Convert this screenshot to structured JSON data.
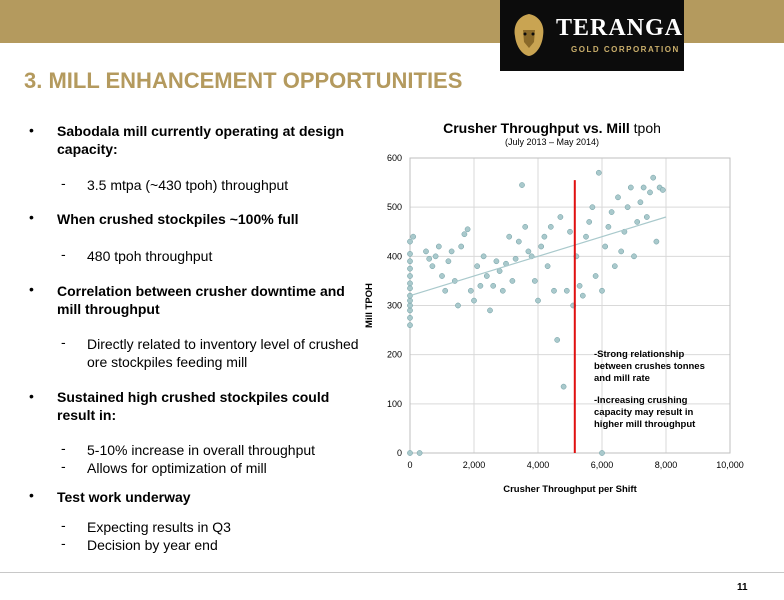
{
  "logo": {
    "name": "TERANGA",
    "sub": "GOLD CORPORATION"
  },
  "title": "3. MILL ENHANCEMENT OPPORTUNITIES",
  "bullets": {
    "b1": "Sabodala mill currently operating at design capacity:",
    "b1_sub": "3.5 mtpa (~430 tpoh) throughput",
    "b2": "When crushed stockpiles ~100% full",
    "b2_sub": "480 tpoh throughput",
    "b3": "Correlation between crusher downtime and mill throughput",
    "b3_sub": "Directly related to inventory level of crushed ore stockpiles feeding mill",
    "b4": "Sustained high crushed stockpiles could result in:",
    "b4_sub1": "5-10% increase in overall throughput",
    "b4_sub2": "Allows for optimization of mill",
    "b5": "Test work underway",
    "b5_sub1": "Expecting results in Q3",
    "b5_sub2": "Decision by year end"
  },
  "chart_title_bold": "Crusher Throughput vs. Mill",
  "chart_title_tail": " tpoh",
  "chart_subtitle": "(July 2013 – May 2014)",
  "page_number": "11",
  "chart_data": {
    "type": "scatter",
    "xlabel": "Crusher Throughput per Shift",
    "ylabel": "Mill TPOH",
    "xlim": [
      0,
      10000
    ],
    "ylim": [
      0,
      600
    ],
    "xticks": [
      "0",
      "2,000",
      "4,000",
      "6,000",
      "8,000",
      "10,000"
    ],
    "yticks": [
      "0",
      "100",
      "200",
      "300",
      "400",
      "500",
      "600"
    ],
    "point_color": "#a9c9cc",
    "point_stroke": "#6e9da2",
    "trendline": {
      "x": [
        0,
        8000
      ],
      "y": [
        320,
        480
      ],
      "color": "#a9c9cc"
    },
    "vertical_line": {
      "x": 5150,
      "color": "#e01010"
    },
    "annotations": [
      "-Strong relationship between crushes tonnes and mill rate",
      "-Increasing crushing capacity may result in higher mill throughput"
    ],
    "points": [
      [
        0,
        260
      ],
      [
        0,
        275
      ],
      [
        0,
        290
      ],
      [
        0,
        300
      ],
      [
        0,
        310
      ],
      [
        0,
        320
      ],
      [
        0,
        335
      ],
      [
        0,
        345
      ],
      [
        0,
        360
      ],
      [
        0,
        375
      ],
      [
        0,
        390
      ],
      [
        0,
        405
      ],
      [
        0,
        430
      ],
      [
        100,
        440
      ],
      [
        0,
        0
      ],
      [
        300,
        0
      ],
      [
        500,
        410
      ],
      [
        600,
        395
      ],
      [
        700,
        380
      ],
      [
        800,
        400
      ],
      [
        900,
        420
      ],
      [
        1000,
        360
      ],
      [
        1100,
        330
      ],
      [
        1200,
        390
      ],
      [
        1300,
        410
      ],
      [
        1400,
        350
      ],
      [
        1500,
        300
      ],
      [
        1600,
        420
      ],
      [
        1700,
        445
      ],
      [
        1800,
        455
      ],
      [
        1900,
        330
      ],
      [
        2000,
        310
      ],
      [
        2100,
        380
      ],
      [
        2200,
        340
      ],
      [
        2300,
        400
      ],
      [
        2400,
        360
      ],
      [
        2500,
        290
      ],
      [
        2600,
        340
      ],
      [
        2700,
        390
      ],
      [
        2800,
        370
      ],
      [
        2900,
        330
      ],
      [
        3000,
        385
      ],
      [
        3100,
        440
      ],
      [
        3200,
        350
      ],
      [
        3300,
        395
      ],
      [
        3400,
        430
      ],
      [
        3500,
        545
      ],
      [
        3600,
        460
      ],
      [
        3700,
        410
      ],
      [
        3800,
        400
      ],
      [
        3900,
        350
      ],
      [
        4000,
        310
      ],
      [
        4100,
        420
      ],
      [
        4200,
        440
      ],
      [
        4300,
        380
      ],
      [
        4400,
        460
      ],
      [
        4500,
        330
      ],
      [
        4600,
        230
      ],
      [
        4700,
        480
      ],
      [
        4800,
        135
      ],
      [
        4900,
        330
      ],
      [
        5000,
        450
      ],
      [
        5100,
        300
      ],
      [
        5200,
        400
      ],
      [
        5300,
        340
      ],
      [
        5400,
        320
      ],
      [
        5500,
        440
      ],
      [
        5600,
        470
      ],
      [
        5700,
        500
      ],
      [
        5800,
        360
      ],
      [
        5900,
        570
      ],
      [
        6000,
        0
      ],
      [
        6000,
        330
      ],
      [
        6100,
        420
      ],
      [
        6200,
        460
      ],
      [
        6300,
        490
      ],
      [
        6400,
        380
      ],
      [
        6500,
        520
      ],
      [
        6600,
        410
      ],
      [
        6700,
        450
      ],
      [
        6800,
        500
      ],
      [
        6900,
        540
      ],
      [
        7000,
        400
      ],
      [
        7100,
        470
      ],
      [
        7200,
        510
      ],
      [
        7300,
        540
      ],
      [
        7400,
        480
      ],
      [
        7500,
        530
      ],
      [
        7600,
        560
      ],
      [
        7700,
        430
      ],
      [
        7800,
        540
      ],
      [
        7900,
        535
      ]
    ]
  }
}
